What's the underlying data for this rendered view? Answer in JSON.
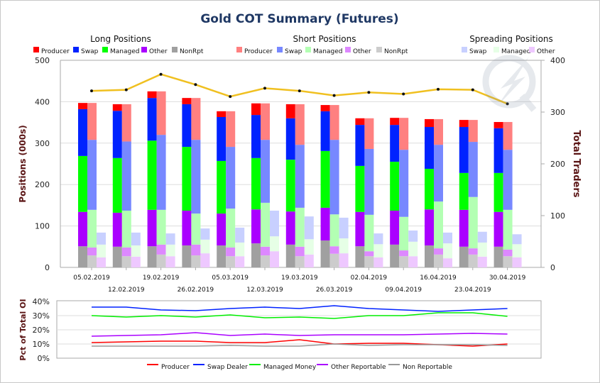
{
  "title": "Gold COT Summary (Futures)",
  "chart_data": [
    {
      "type": "bar",
      "title": "Gold COT Summary (Futures)",
      "ylabel": "Positions (000s)",
      "y2label": "Total Traders",
      "ylim": [
        0,
        500
      ],
      "y2lim": [
        0,
        400
      ],
      "yticks": [
        "0",
        "100",
        "200",
        "300",
        "400",
        "500"
      ],
      "y2ticks": [
        "0",
        "100",
        "200",
        "300",
        "400"
      ],
      "grid": true,
      "categories": [
        "05.02.2019",
        "12.02.2019",
        "19.02.2019",
        "26.02.2019",
        "05.03.2019",
        "12.03.2019",
        "19.03.2019",
        "26.03.2019",
        "02.04.2019",
        "09.04.2019",
        "16.04.2019",
        "23.04.2019",
        "30.04.2019"
      ],
      "groups": [
        {
          "name": "Long Positions",
          "series": [
            {
              "name": "NonRpt",
              "color": "#a0a0a0",
              "values": [
                51,
                50,
                51,
                53,
                53,
                58,
                55,
                65,
                51,
                55,
                53,
                50,
                50
              ]
            },
            {
              "name": "Other",
              "color": "#aa00ff",
              "values": [
                83,
                82,
                88,
                84,
                77,
                82,
                80,
                79,
                83,
                82,
                87,
                89,
                84
              ]
            },
            {
              "name": "Managed",
              "color": "#00ff00",
              "values": [
                135,
                132,
                167,
                154,
                127,
                124,
                125,
                137,
                111,
                118,
                98,
                89,
                94
              ]
            },
            {
              "name": "Swap",
              "color": "#0022ff",
              "values": [
                113,
                114,
                103,
                103,
                106,
                104,
                100,
                96,
                99,
                89,
                101,
                111,
                108
              ]
            },
            {
              "name": "Producer",
              "color": "#ff0000",
              "values": [
                15,
                16,
                16,
                15,
                14,
                28,
                34,
                15,
                16,
                17,
                19,
                17,
                15
              ]
            }
          ]
        },
        {
          "name": "Short Positions",
          "series": [
            {
              "name": "NonRpt",
              "color": "#cccccc",
              "values": [
                29,
                27,
                31,
                29,
                27,
                29,
                27,
                33,
                27,
                27,
                31,
                31,
                27
              ]
            },
            {
              "name": "Other",
              "color": "#dd88ff",
              "values": [
                19,
                21,
                24,
                26,
                21,
                21,
                23,
                18,
                12,
                14,
                15,
                15,
                16
              ]
            },
            {
              "name": "Managed",
              "color": "#b3ffb3",
              "values": [
                91,
                89,
                84,
                75,
                94,
                106,
                94,
                77,
                88,
                81,
                113,
                124,
                96
              ]
            },
            {
              "name": "Swap",
              "color": "#7788ff",
              "values": [
                169,
                167,
                181,
                178,
                149,
                152,
                152,
                180,
                159,
                162,
                137,
                133,
                145
              ]
            },
            {
              "name": "Producer",
              "color": "#ff8080",
              "values": [
                89,
                90,
                105,
                101,
                86,
                88,
                98,
                84,
                74,
                77,
                62,
                53,
                67
              ]
            }
          ]
        },
        {
          "name": "Spreading Positions",
          "series": [
            {
              "name": "Other",
              "color": "#eec8ff",
              "values": [
                24,
                26,
                27,
                34,
                27,
                39,
                31,
                34,
                24,
                27,
                22,
                26,
                24
              ]
            },
            {
              "name": "Managed",
              "color": "#e6ffe6",
              "values": [
                31,
                27,
                28,
                33,
                33,
                36,
                37,
                36,
                32,
                35,
                36,
                34,
                32
              ]
            },
            {
              "name": "Swap",
              "color": "#c8d0ff",
              "values": [
                29,
                31,
                27,
                27,
                36,
                62,
                55,
                50,
                26,
                27,
                26,
                26,
                24
              ]
            }
          ]
        }
      ],
      "line": {
        "name": "Total Traders",
        "color": "#f0c020",
        "axis": "right",
        "values": [
          341,
          343,
          373,
          353,
          330,
          346,
          341,
          332,
          338,
          335,
          344,
          343,
          316
        ]
      },
      "legend_order": {
        "Long Positions": [
          "Producer",
          "Swap",
          "Managed",
          "Other",
          "NonRpt"
        ],
        "Short Positions": [
          "Producer",
          "Swap",
          "Managed",
          "Other",
          "NonRpt"
        ],
        "Spreading Positions": [
          "Swap",
          "Managed",
          "Other"
        ]
      }
    },
    {
      "type": "line",
      "ylabel": "Pct of Total OI",
      "ylim": [
        0,
        40
      ],
      "yticks": [
        "0%",
        "10%",
        "20%",
        "30%",
        "40%"
      ],
      "grid": true,
      "legend": "bottom",
      "series": [
        {
          "name": "Producer",
          "color": "#ff0000",
          "values": [
            11,
            11.5,
            12,
            12,
            11,
            11,
            13,
            10,
            10.5,
            10.5,
            9.5,
            8.5,
            10
          ]
        },
        {
          "name": "Swap Dealer",
          "color": "#0022ff",
          "values": [
            36,
            36,
            34,
            33.5,
            35,
            36,
            35,
            37,
            35,
            34,
            33,
            34,
            35
          ]
        },
        {
          "name": "Managed Money",
          "color": "#00ee00",
          "values": [
            30,
            29,
            30,
            29,
            30.5,
            28.5,
            29,
            28,
            30,
            30,
            32,
            32,
            29.5
          ]
        },
        {
          "name": "Other Reportable",
          "color": "#aa00ff",
          "values": [
            15.5,
            16,
            16.5,
            18,
            16,
            17,
            16,
            16.5,
            16.5,
            16.5,
            17,
            17.5,
            17
          ]
        },
        {
          "name": "Non Reportable",
          "color": "#999999",
          "values": [
            8.5,
            8.5,
            8.5,
            8.5,
            9,
            8.5,
            8.5,
            10,
            9,
            9.5,
            9.5,
            9.5,
            9
          ]
        }
      ]
    }
  ]
}
